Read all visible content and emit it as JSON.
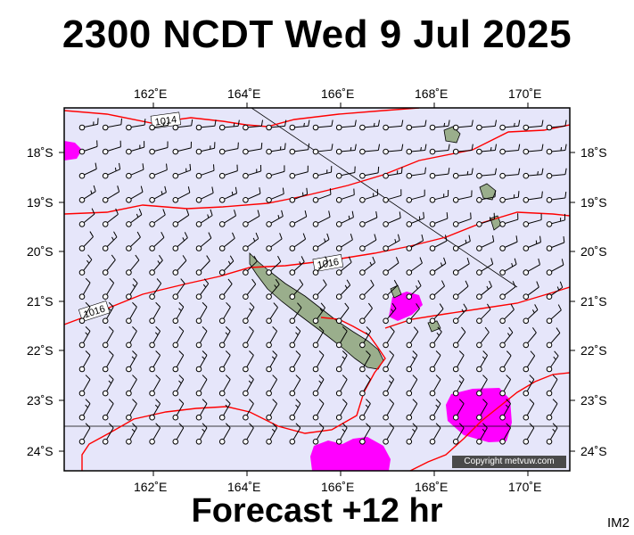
{
  "title": "2300 NCDT Wed 9 Jul 2025",
  "forecast_label": "Forecast +12 hr",
  "image_code": "IM2",
  "copyright": "Copyright metvuw.com",
  "longitude_labels": [
    "162˚E",
    "164˚E",
    "166˚E",
    "168˚E",
    "170˚E"
  ],
  "latitude_labels": [
    "18˚S",
    "19˚S",
    "20˚S",
    "21˚S",
    "22˚S",
    "23˚S",
    "24˚S"
  ],
  "isobar_labels": [
    "1014",
    "1016",
    "1016"
  ],
  "colors": {
    "ocean": "#e6e6fa",
    "isobar": "#ff0000",
    "rain": "#ff00ff",
    "land": "#9aae8c",
    "wind_barb": "#000000"
  }
}
